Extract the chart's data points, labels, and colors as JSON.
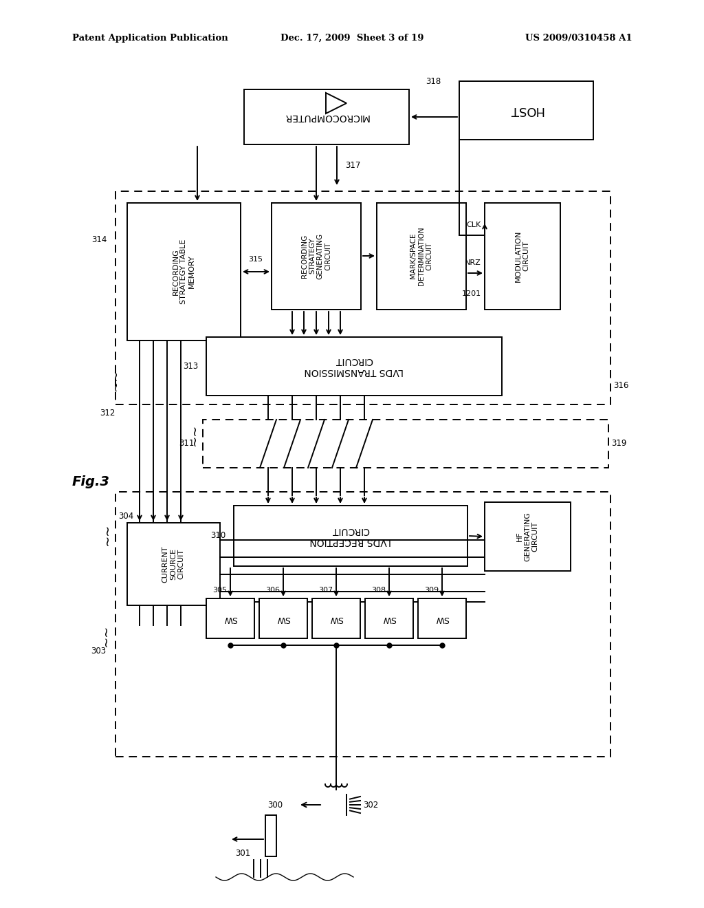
{
  "bg": "#ffffff",
  "header_left": "Patent Application Publication",
  "header_center": "Dec. 17, 2009  Sheet 3 of 19",
  "header_right": "US 2009/0310458 A1",
  "fig_label": "Fig.3",
  "lw": 1.4
}
